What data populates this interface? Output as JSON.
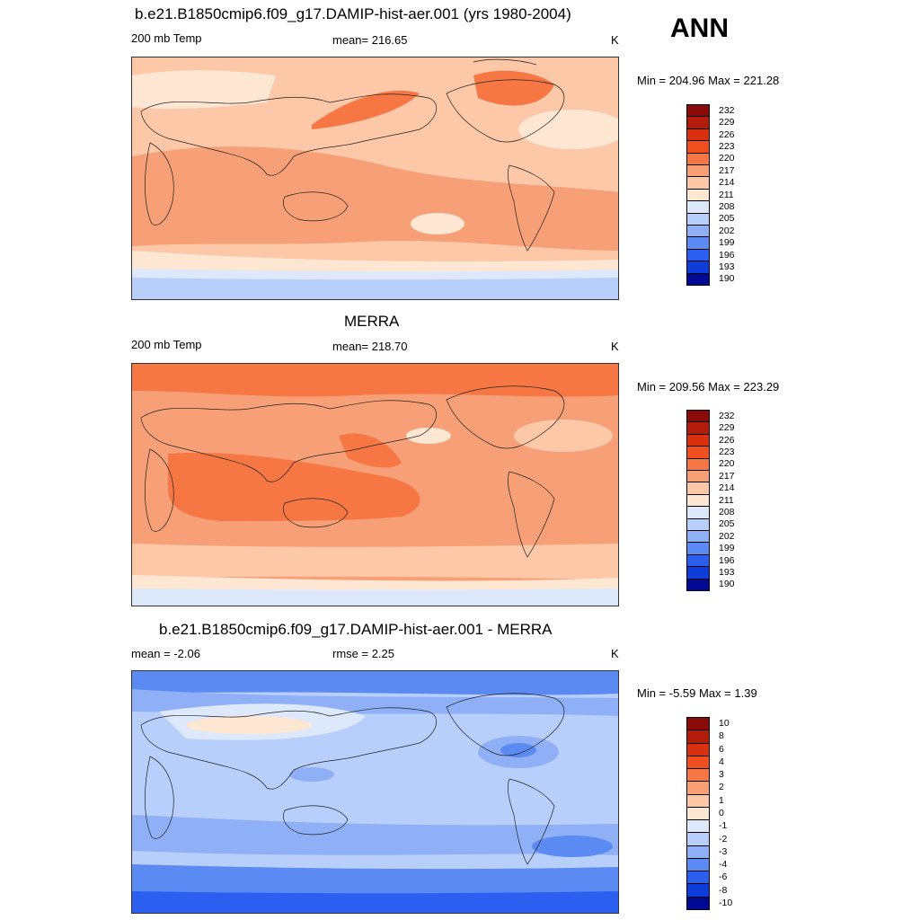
{
  "season_label": "ANN",
  "panels": [
    {
      "title": "b.e21.B1850cmip6.f09_g17.DAMIP-hist-aer.001 (yrs 1980-2004)",
      "left_label": "200 mb Temp",
      "center_label": "mean= 216.65",
      "units": "K",
      "minmax": "Min = 204.96 Max = 221.28",
      "colorbar_labels": [
        "232",
        "229",
        "226",
        "223",
        "220",
        "217",
        "214",
        "211",
        "208",
        "205",
        "202",
        "199",
        "196",
        "193",
        "190"
      ]
    },
    {
      "title": "MERRA",
      "left_label": "200 mb Temp",
      "center_label": "mean= 218.70",
      "units": "K",
      "minmax": "Min = 209.56 Max = 223.29",
      "colorbar_labels": [
        "232",
        "229",
        "226",
        "223",
        "220",
        "217",
        "214",
        "211",
        "208",
        "205",
        "202",
        "199",
        "196",
        "193",
        "190"
      ]
    },
    {
      "title": "b.e21.B1850cmip6.f09_g17.DAMIP-hist-aer.001 - MERRA",
      "left_label": "mean =  -2.06",
      "center_label": "rmse =   2.25",
      "units": "K",
      "minmax": "Min =  -5.59 Max =   1.39",
      "colorbar_labels": [
        "10",
        "8",
        "6",
        "4",
        "3",
        "2",
        "1",
        "0",
        "-1",
        "-2",
        "-3",
        "-4",
        "-6",
        "-8",
        "-10"
      ]
    }
  ],
  "colorbar_colors": [
    "#8b0a0a",
    "#b31c0b",
    "#d9300f",
    "#f0501f",
    "#f77744",
    "#f7a077",
    "#fcc8a8",
    "#fde6d2",
    "#dde9fb",
    "#b8cffb",
    "#8fb0f7",
    "#5b8af2",
    "#2c5ef0",
    "#0f3dd9",
    "#000a94"
  ]
}
